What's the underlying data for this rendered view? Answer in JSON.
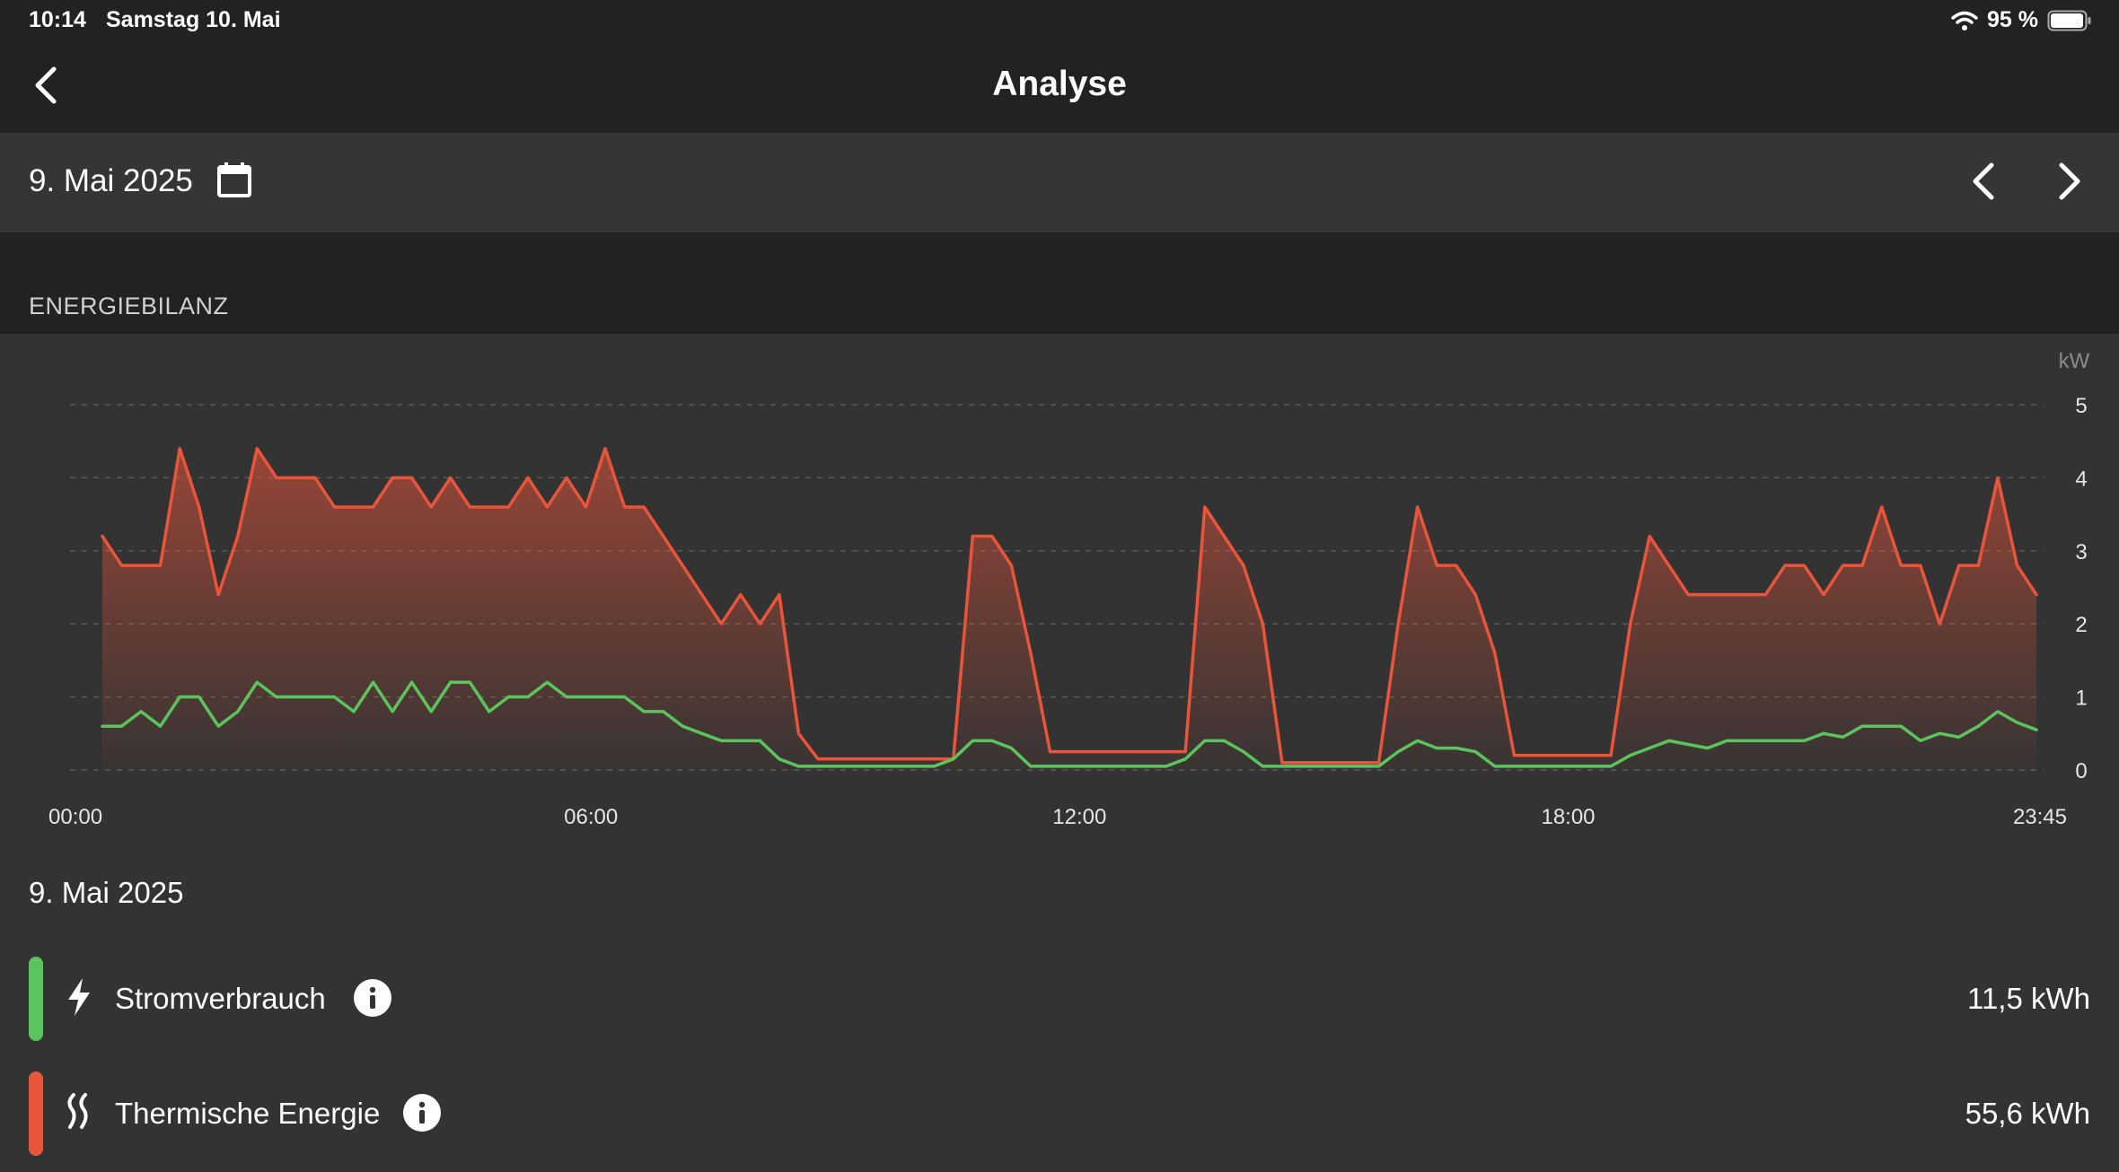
{
  "status_bar": {
    "time": "10:14",
    "date": "Samstag 10. Mai",
    "battery": "95 %"
  },
  "header": {
    "title": "Analyse"
  },
  "date_bar": {
    "date": "9. Mai 2025"
  },
  "section": {
    "title": "ENERGIEBILANZ"
  },
  "colors": {
    "strom": "#5cc45c",
    "thermo": "#e8553a",
    "background": "#222222",
    "panel": "#333333"
  },
  "chart_data": {
    "type": "area",
    "title": "ENERGIEBILANZ",
    "ylabel": "kW",
    "ylim": [
      0,
      5
    ],
    "y_ticks": [
      "0",
      "1",
      "2",
      "3",
      "4",
      "5"
    ],
    "x_ticks": [
      {
        "label": "00:00",
        "hour": 0
      },
      {
        "label": "06:00",
        "hour": 6
      },
      {
        "label": "12:00",
        "hour": 12
      },
      {
        "label": "18:00",
        "hour": 18
      },
      {
        "label": "23:45",
        "hour": 23.75
      }
    ],
    "interval_hours": 0.25,
    "series": [
      {
        "name": "Thermische Energie",
        "color": "#e8553a",
        "filled": true,
        "values": [
          3.2,
          2.8,
          2.8,
          2.8,
          4.4,
          3.6,
          2.4,
          3.2,
          4.4,
          4.0,
          4.0,
          4.0,
          3.6,
          3.6,
          3.6,
          4.0,
          4.0,
          3.6,
          4.0,
          3.6,
          3.6,
          3.6,
          4.0,
          3.6,
          4.0,
          3.6,
          4.4,
          3.6,
          3.6,
          3.2,
          2.8,
          2.4,
          2.0,
          2.4,
          2.0,
          2.4,
          0.5,
          0.15,
          0.15,
          0.15,
          0.15,
          0.15,
          0.15,
          0.15,
          0.15,
          3.2,
          3.2,
          2.8,
          1.6,
          0.25,
          0.25,
          0.25,
          0.25,
          0.25,
          0.25,
          0.25,
          0.25,
          3.6,
          3.2,
          2.8,
          2.0,
          0.1,
          0.1,
          0.1,
          0.1,
          0.1,
          0.1,
          2.0,
          3.6,
          2.8,
          2.8,
          2.4,
          1.6,
          0.2,
          0.2,
          0.2,
          0.2,
          0.2,
          0.2,
          2.0,
          3.2,
          2.8,
          2.4,
          2.4,
          2.4,
          2.4,
          2.4,
          2.8,
          2.8,
          2.4,
          2.8,
          2.8,
          3.6,
          2.8,
          2.8,
          2.0,
          2.8,
          2.8,
          4.0,
          2.8,
          2.4
        ]
      },
      {
        "name": "Stromverbrauch",
        "color": "#5cc45c",
        "filled": false,
        "values": [
          0.6,
          0.6,
          0.8,
          0.6,
          1.0,
          1.0,
          0.6,
          0.8,
          1.2,
          1.0,
          1.0,
          1.0,
          1.0,
          0.8,
          1.2,
          0.8,
          1.2,
          0.8,
          1.2,
          1.2,
          0.8,
          1.0,
          1.0,
          1.2,
          1.0,
          1.0,
          1.0,
          1.0,
          0.8,
          0.8,
          0.6,
          0.5,
          0.4,
          0.4,
          0.4,
          0.15,
          0.05,
          0.05,
          0.05,
          0.05,
          0.05,
          0.05,
          0.05,
          0.05,
          0.15,
          0.4,
          0.4,
          0.3,
          0.05,
          0.05,
          0.05,
          0.05,
          0.05,
          0.05,
          0.05,
          0.05,
          0.15,
          0.4,
          0.4,
          0.25,
          0.05,
          0.05,
          0.05,
          0.05,
          0.05,
          0.05,
          0.05,
          0.25,
          0.4,
          0.3,
          0.3,
          0.25,
          0.05,
          0.05,
          0.05,
          0.05,
          0.05,
          0.05,
          0.05,
          0.2,
          0.3,
          0.4,
          0.35,
          0.3,
          0.4,
          0.4,
          0.4,
          0.4,
          0.4,
          0.5,
          0.45,
          0.6,
          0.6,
          0.6,
          0.4,
          0.5,
          0.45,
          0.6,
          0.8,
          0.65,
          0.55
        ]
      }
    ]
  },
  "summary": {
    "date": "9. Mai 2025",
    "items": [
      {
        "label": "Stromverbrauch",
        "value": "11,5 kWh",
        "icon": "bolt-icon"
      },
      {
        "label": "Thermische Energie",
        "value": "55,6 kWh",
        "icon": "heat-waves-icon"
      }
    ]
  }
}
